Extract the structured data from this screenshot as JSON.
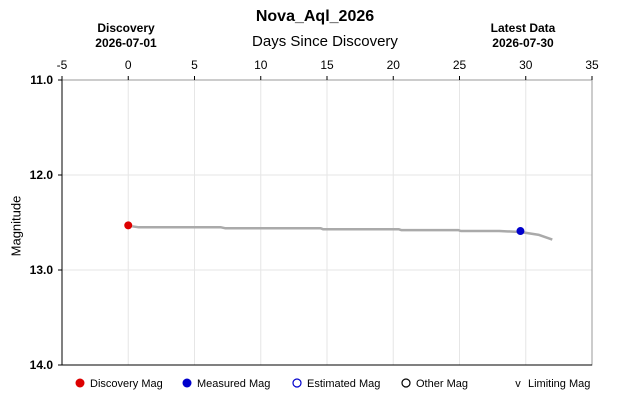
{
  "chart_data": {
    "type": "line",
    "title": "Nova_Aql_2026",
    "xlabel": "Days Since Discovery",
    "ylabel": "Magnitude",
    "xlim": [
      -5,
      35
    ],
    "ylim": [
      11.0,
      14.0
    ],
    "y_inverted": true,
    "x_ticks": [
      "-5",
      "0",
      "5",
      "10",
      "15",
      "20",
      "25",
      "30",
      "35"
    ],
    "y_ticks": [
      "11.0",
      "12.0",
      "13.0",
      "14.0"
    ],
    "grid": true,
    "discovery": {
      "label": "Discovery",
      "date": "2026-07-01"
    },
    "latest": {
      "label": "Latest Data",
      "date": "2026-07-30"
    },
    "trend_line": {
      "x": [
        0.3,
        0.8,
        7.0,
        7.3,
        14.5,
        14.7,
        20.4,
        20.6,
        24.9,
        25.1,
        28.0,
        29.6,
        31.0,
        32.0
      ],
      "y": [
        12.54,
        12.55,
        12.55,
        12.56,
        12.56,
        12.57,
        12.57,
        12.58,
        12.58,
        12.59,
        12.59,
        12.6,
        12.63,
        12.68
      ],
      "color": "#aaaaaa"
    },
    "points": [
      {
        "category": "discovery",
        "x": 0.0,
        "y": 12.53
      },
      {
        "category": "measured",
        "x": 29.6,
        "y": 12.59
      }
    ],
    "legend": {
      "placement": "bottom",
      "items": [
        {
          "key": "discovery",
          "label": "Discovery Mag",
          "marker": "filled-circle",
          "color": "#dd0000"
        },
        {
          "key": "measured",
          "label": "Measured Mag",
          "marker": "filled-circle",
          "color": "#0000cc"
        },
        {
          "key": "estimated",
          "label": "Estimated Mag",
          "marker": "open-circle",
          "color": "#0000cc"
        },
        {
          "key": "other",
          "label": "Other Mag",
          "marker": "open-circle",
          "color": "#000000"
        },
        {
          "key": "limiting",
          "label": "Limiting Mag",
          "marker": "v",
          "color": "#000000"
        }
      ]
    }
  }
}
